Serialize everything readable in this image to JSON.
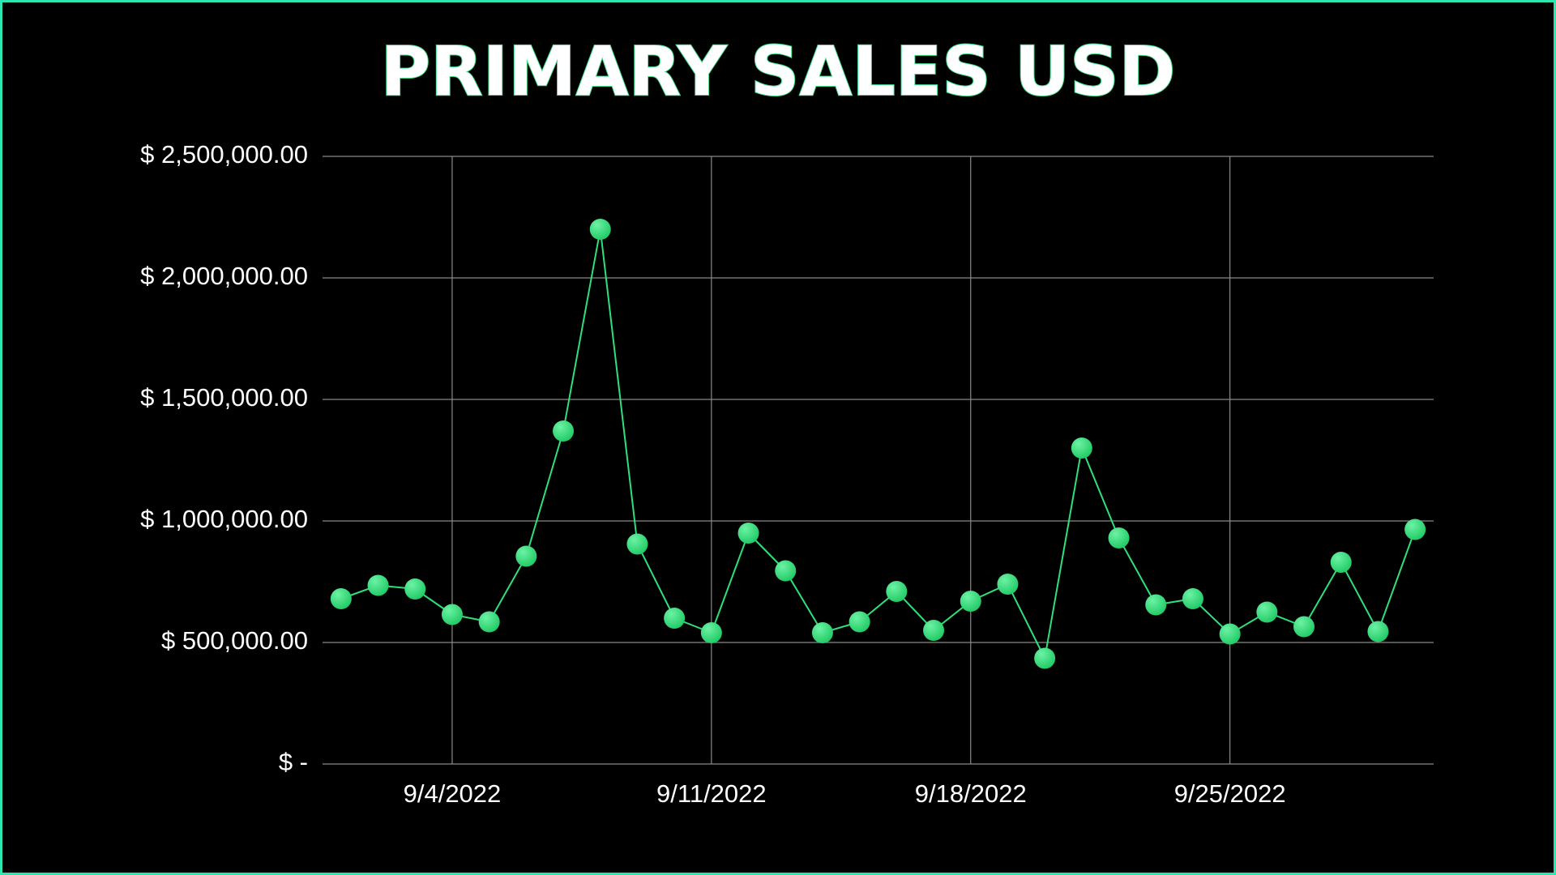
{
  "chart_data": {
    "type": "line",
    "title": "PRIMARY SALES USD",
    "x": [
      "9/1/2022",
      "9/2/2022",
      "9/3/2022",
      "9/4/2022",
      "9/5/2022",
      "9/6/2022",
      "9/7/2022",
      "9/8/2022",
      "9/9/2022",
      "9/10/2022",
      "9/11/2022",
      "9/12/2022",
      "9/13/2022",
      "9/14/2022",
      "9/15/2022",
      "9/16/2022",
      "9/17/2022",
      "9/18/2022",
      "9/19/2022",
      "9/20/2022",
      "9/21/2022",
      "9/22/2022",
      "9/23/2022",
      "9/24/2022",
      "9/25/2022",
      "9/26/2022",
      "9/27/2022",
      "9/28/2022",
      "9/29/2022",
      "9/30/2022"
    ],
    "series": [
      {
        "color": "#2fe07a",
        "values": [
          680000,
          735000,
          720000,
          615000,
          585000,
          855000,
          1370000,
          2200000,
          905000,
          600000,
          540000,
          950000,
          795000,
          540000,
          585000,
          710000,
          550000,
          670000,
          740000,
          435000,
          1300000,
          930000,
          655000,
          680000,
          535000,
          625000,
          565000,
          830000,
          545000,
          965000
        ]
      }
    ],
    "xticks": [
      "9/4/2022",
      "9/11/2022",
      "9/18/2022",
      "9/25/2022"
    ],
    "ylim": [
      0,
      2500000
    ],
    "yticks": [
      {
        "value": 0,
        "label": "$ -"
      },
      {
        "value": 500000,
        "label": "$ 500,000.00"
      },
      {
        "value": 1000000,
        "label": "$ 1,000,000.00"
      },
      {
        "value": 1500000,
        "label": "$ 1,500,000.00"
      },
      {
        "value": 2000000,
        "label": "$ 2,000,000.00"
      },
      {
        "value": 2500000,
        "label": "$ 2,500,000.00"
      }
    ],
    "grid": true
  }
}
